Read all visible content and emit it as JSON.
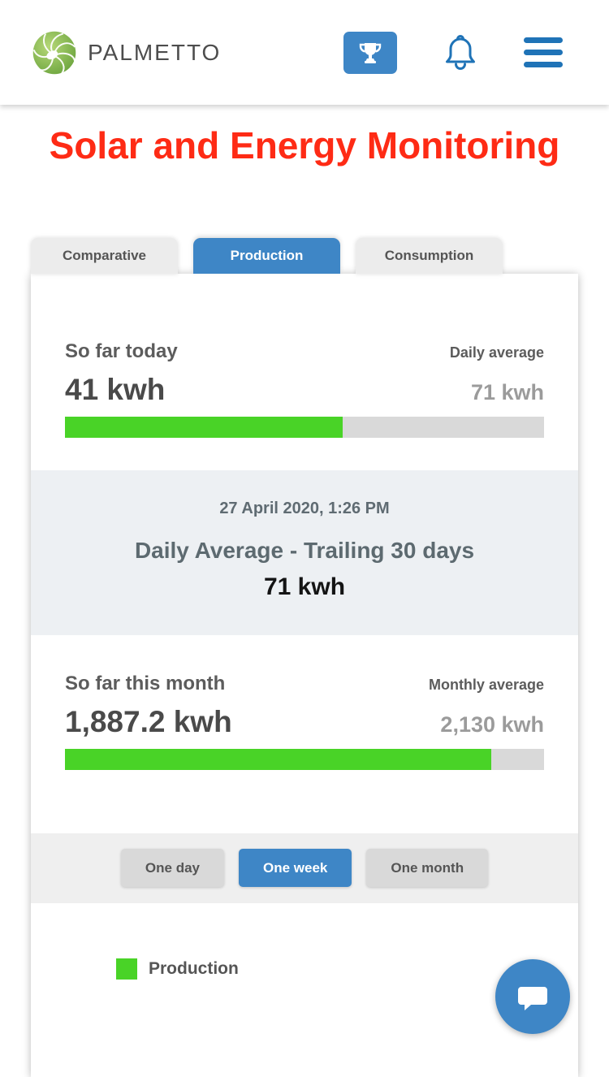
{
  "colors": {
    "accent": "#3e86c6",
    "icon": "#1f73b7",
    "red": "#fe2b15",
    "green": "#49d327",
    "track": "#d9d9d9"
  },
  "header": {
    "brand": "PALMETTO"
  },
  "page_title": "Solar and Energy Monitoring",
  "tabs": [
    {
      "label": "Comparative",
      "active": false
    },
    {
      "label": "Production",
      "active": true
    },
    {
      "label": "Consumption",
      "active": false
    }
  ],
  "today": {
    "label": "So far today",
    "value": "41 kwh",
    "avg_label": "Daily average",
    "avg_value": "71 kwh",
    "progress_pct": 58
  },
  "summary": {
    "datetime": "27 April 2020, 1:26 PM",
    "title": "Daily Average - Trailing 30 days",
    "value": "71 kwh"
  },
  "month": {
    "label": "So far this month",
    "value": "1,887.2 kwh",
    "avg_label": "Monthly average",
    "avg_value": "2,130 kwh",
    "progress_pct": 89
  },
  "range_buttons": [
    {
      "label": "One day",
      "active": false
    },
    {
      "label": "One week",
      "active": true
    },
    {
      "label": "One month",
      "active": false
    }
  ],
  "legend": {
    "production": "Production"
  }
}
